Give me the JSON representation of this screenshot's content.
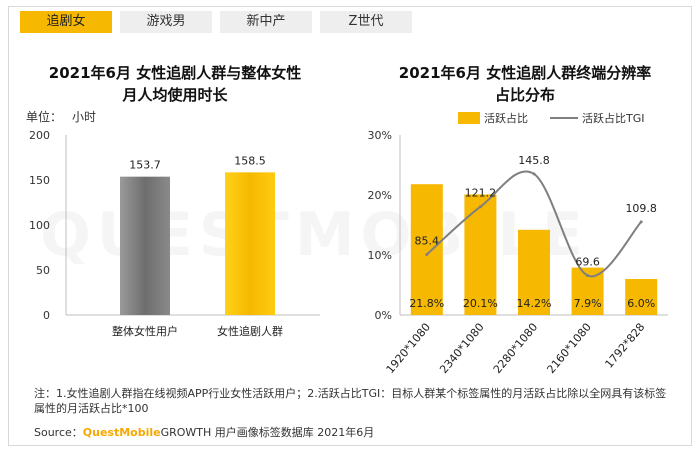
{
  "tabs": [
    "追剧女",
    "游戏男",
    "新中产",
    "Z世代"
  ],
  "left_title_line1": "2021年6月 女性追剧人群与整体女性",
  "left_title_line2": "月人均使用时长",
  "unit_label": "单位：",
  "unit_value": "小时",
  "right_title_line1": "2021年6月 女性追剧人群终端分辨率",
  "right_title_line2": "占比分布",
  "legend_bar": "活跃占比",
  "legend_line": "活跃占比TGI",
  "note": "注：1.女性追剧人群指在线视频APP行业女性活跃用户；2.活跃占比TGI：目标人群某个标签属性的月活跃占比除以全网具有该标签属性的月活跃占比*100",
  "source_prefix": "Source：",
  "source_brand": "QuestMobile",
  "source_rest": "GROWTH 用户画像标签数据库 2021年6月",
  "watermark": "QUESTMOBILE",
  "colors": {
    "accent": "#f6b800",
    "gray_bar": "#7f7f7f",
    "line": "#7f7f7f"
  },
  "chart_data": [
    {
      "type": "bar",
      "categories": [
        "整体女性用户",
        "女性追剧人群"
      ],
      "values": [
        153.7,
        158.5
      ],
      "ylim": [
        0,
        200
      ],
      "yticks": [
        0,
        50,
        100,
        150,
        200
      ],
      "ylabel": "小时",
      "grid": false
    },
    {
      "type": "bar",
      "categories": [
        "1920*1080",
        "2340*1080",
        "2280*1080",
        "2160*1080",
        "1792*828"
      ],
      "series": [
        {
          "name": "活跃占比",
          "values": [
            21.8,
            20.1,
            14.2,
            7.9,
            6.0
          ],
          "labels": [
            "21.8%",
            "20.1%",
            "14.2%",
            "7.9%",
            "6.0%"
          ]
        },
        {
          "name": "活跃占比TGI",
          "type": "line",
          "values": [
            85.4,
            121.2,
            145.8,
            69.6,
            109.8
          ],
          "labels": [
            "85.4",
            "121.2",
            "145.8",
            "69.6",
            "109.8"
          ]
        }
      ],
      "ylim": [
        0,
        30
      ],
      "yticks": [
        "0%",
        "10%",
        "20%",
        "30%"
      ],
      "grid": false,
      "legend": "top"
    }
  ]
}
